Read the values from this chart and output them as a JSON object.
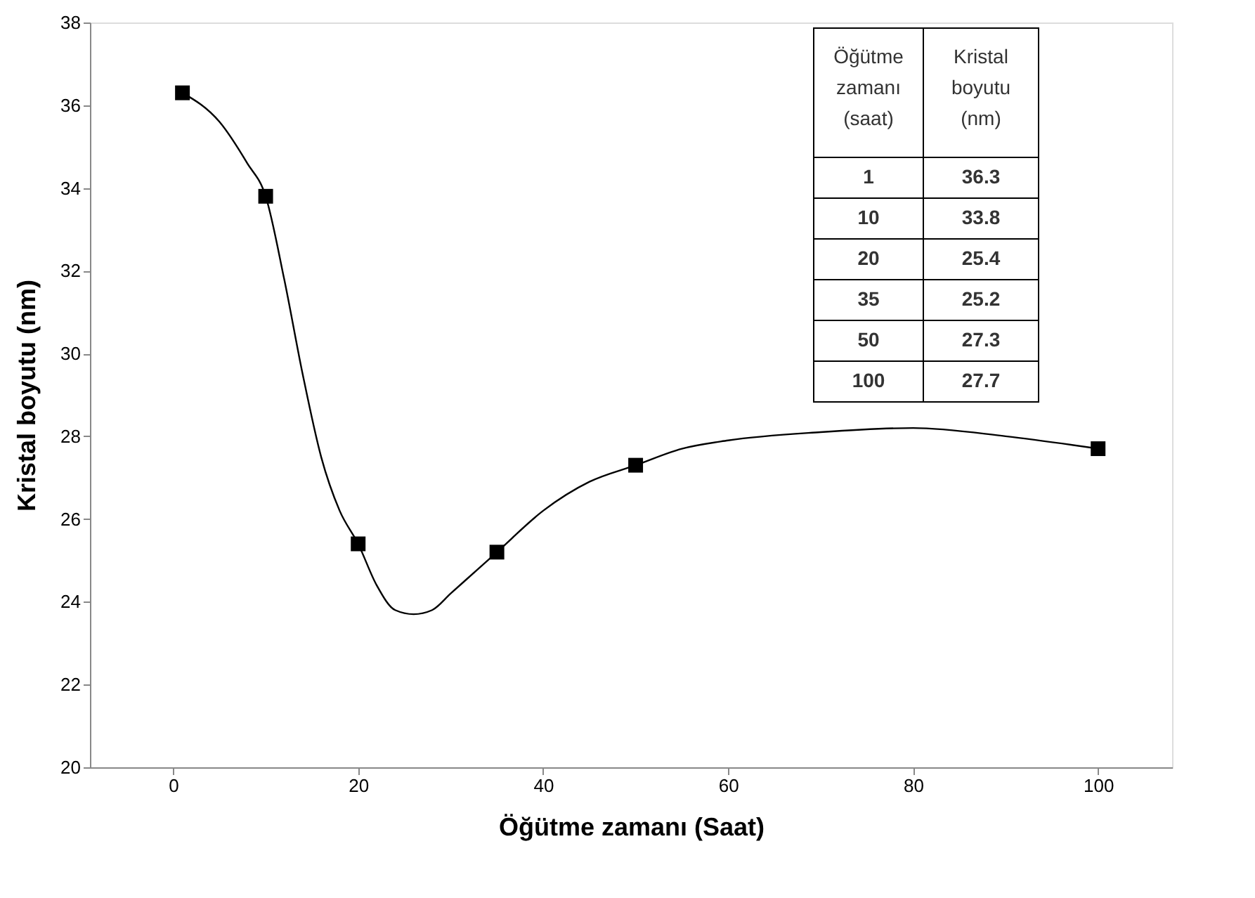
{
  "chart_data": {
    "type": "scatter",
    "xlabel": "Öğütme zamanı (Saat)",
    "ylabel": "Kristal boyutu (nm)",
    "xlim": [
      -9,
      108
    ],
    "xticks": [
      0,
      20,
      40,
      60,
      80,
      100
    ],
    "ylim": [
      20,
      38
    ],
    "yticks": [
      20,
      22,
      24,
      26,
      28,
      30,
      32,
      34,
      36,
      38
    ],
    "grid": false,
    "annotations": [
      "Öğütme zamanı (saat)",
      "Kristal boyutu (nm)",
      "1",
      "36.3",
      "10",
      "33.8",
      "20",
      "25.4",
      "35",
      "25.2",
      "50",
      "27.3",
      "100",
      "27.7"
    ],
    "series": [
      {
        "type": "scatter",
        "marker": "square",
        "color": "#000000",
        "x": [
          1,
          10,
          20,
          35,
          50,
          100
        ],
        "values": [
          36.3,
          33.8,
          25.4,
          25.2,
          27.3,
          27.7
        ]
      },
      {
        "type": "line",
        "marker": "none",
        "color": "#000000",
        "x": [
          1,
          5,
          8,
          10,
          12,
          14,
          16,
          18,
          20,
          22,
          24,
          26,
          28,
          30,
          33,
          35,
          40,
          45,
          50,
          55,
          60,
          70,
          80,
          90,
          100
        ],
        "values": [
          36.3,
          35.6,
          34.6,
          33.8,
          31.8,
          29.5,
          27.5,
          26.2,
          25.4,
          24.4,
          23.8,
          23.7,
          23.8,
          24.2,
          24.8,
          25.2,
          26.2,
          26.9,
          27.3,
          27.7,
          27.9,
          28.1,
          28.2,
          28.0,
          27.7
        ]
      }
    ]
  }
}
